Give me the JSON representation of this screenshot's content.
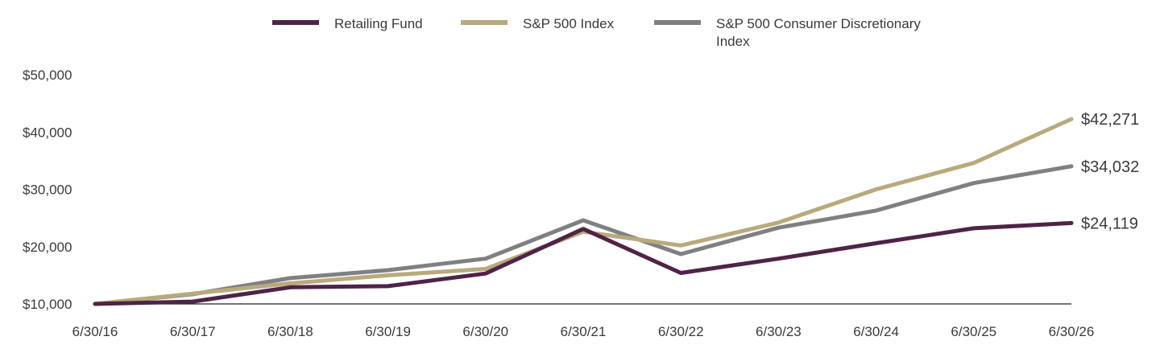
{
  "chart_data": {
    "type": "line",
    "title": "",
    "xlabel": "",
    "ylabel": "",
    "x": [
      "6/30/16",
      "6/30/17",
      "6/30/18",
      "6/30/19",
      "6/30/20",
      "6/30/21",
      "6/30/22",
      "6/30/23",
      "6/30/24",
      "6/30/25",
      "6/30/26"
    ],
    "yticks": [
      "$10,000",
      "$20,000",
      "$30,000",
      "$40,000",
      "$50,000"
    ],
    "ylim": [
      10000,
      50000
    ],
    "grid": false,
    "legend_position": "top-center",
    "series": [
      {
        "name": "Retailing Fund",
        "color": "#4f2347",
        "end_label": "$24,119",
        "values": [
          10000,
          10400,
          12900,
          13100,
          15300,
          23100,
          15400,
          17900,
          20600,
          23200,
          24119
        ]
      },
      {
        "name": "S&P 500 Index",
        "color": "#b8aa7c",
        "end_label": "$42,271",
        "values": [
          10000,
          11800,
          13600,
          15000,
          16100,
          22600,
          20200,
          24200,
          30000,
          34600,
          42271
        ]
      },
      {
        "name": "S&P 500 Consumer Discretionary Index",
        "color": "#808083",
        "end_label": "$34,032",
        "values": [
          10000,
          11700,
          14500,
          15900,
          17900,
          24600,
          18700,
          23300,
          26300,
          31100,
          34032
        ]
      }
    ]
  }
}
